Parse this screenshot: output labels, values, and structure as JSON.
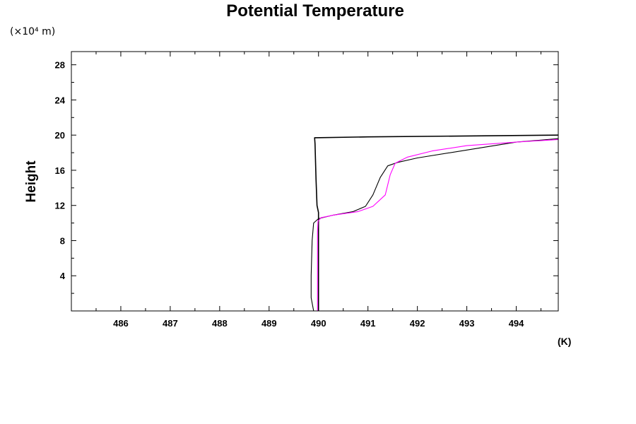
{
  "chart_data": {
    "type": "line",
    "title": "Potential Temperature",
    "ylabel": "Height",
    "y_unit": "(×10⁴ m)",
    "x_unit": "(K)",
    "xlim": [
      485.0,
      494.85
    ],
    "ylim": [
      0,
      29.5
    ],
    "x_ticks": [
      486,
      487,
      488,
      489,
      490,
      491,
      492,
      493,
      494
    ],
    "y_ticks": [
      4,
      8,
      12,
      16,
      20,
      24,
      28
    ],
    "grid": false,
    "series": [
      {
        "color": "#000000",
        "points": [
          [
            494.85,
            20.0
          ],
          [
            491.0,
            19.8
          ],
          [
            489.92,
            19.7
          ],
          [
            489.93,
            19.0
          ],
          [
            489.95,
            15.0
          ],
          [
            489.97,
            12.0
          ],
          [
            490.0,
            11.2
          ],
          [
            490.0,
            0.0
          ]
        ]
      },
      {
        "color": "#000000",
        "points": [
          [
            489.9,
            0.0
          ],
          [
            489.85,
            1.5
          ],
          [
            489.85,
            4.0
          ],
          [
            489.87,
            8.0
          ],
          [
            489.9,
            10.0
          ],
          [
            490.0,
            10.5
          ],
          [
            490.3,
            10.9
          ],
          [
            490.7,
            11.3
          ],
          [
            490.95,
            11.9
          ],
          [
            491.1,
            13.2
          ],
          [
            491.25,
            15.2
          ],
          [
            491.4,
            16.5
          ],
          [
            491.6,
            16.9
          ],
          [
            492.0,
            17.4
          ],
          [
            493.0,
            18.3
          ],
          [
            494.0,
            19.2
          ],
          [
            494.85,
            19.6
          ]
        ]
      },
      {
        "color": "#ff00ff",
        "points": [
          [
            489.98,
            0.0
          ],
          [
            489.98,
            4.0
          ],
          [
            489.98,
            9.0
          ],
          [
            489.99,
            10.2
          ],
          [
            490.05,
            10.6
          ],
          [
            490.3,
            10.9
          ],
          [
            490.8,
            11.3
          ],
          [
            491.1,
            11.9
          ],
          [
            491.35,
            13.2
          ],
          [
            491.45,
            15.5
          ],
          [
            491.55,
            16.8
          ],
          [
            491.8,
            17.5
          ],
          [
            492.3,
            18.2
          ],
          [
            493.0,
            18.8
          ],
          [
            494.0,
            19.2
          ],
          [
            494.85,
            19.5
          ]
        ]
      }
    ]
  }
}
